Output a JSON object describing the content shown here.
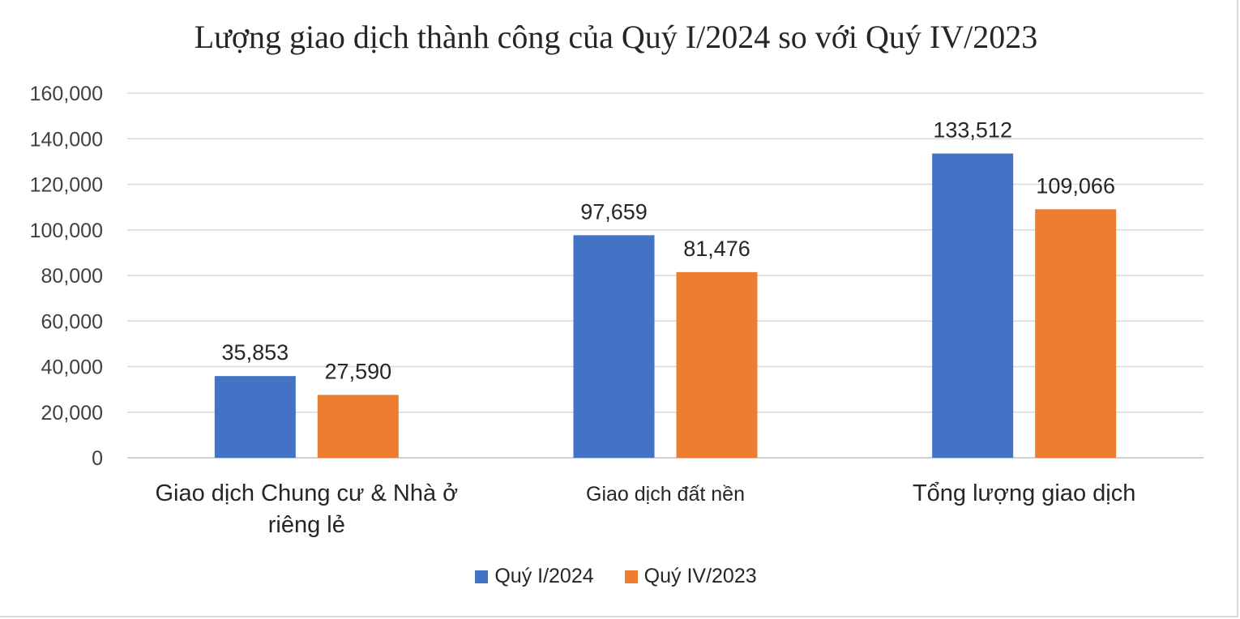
{
  "chart_data": {
    "type": "bar",
    "title": "Lượng giao dịch thành công của Quý I/2024 so với Quý IV/2023",
    "categories": [
      [
        "Giao dịch Chung cư & Nhà ở",
        "riêng lẻ"
      ],
      [
        "Giao dịch đất nền"
      ],
      [
        "Tổng lượng giao dịch"
      ]
    ],
    "series": [
      {
        "name": "Quý I/2024",
        "color": "#4472c4",
        "values": [
          35853,
          97659,
          133512
        ],
        "labels": [
          "35,853",
          "97,659",
          "133,512"
        ]
      },
      {
        "name": "Quý IV/2023",
        "color": "#ed7d31",
        "values": [
          27590,
          81476,
          109066
        ],
        "labels": [
          "27,590",
          "81,476",
          "109,066"
        ]
      }
    ],
    "ylim": [
      0,
      160000
    ],
    "yticks": [
      0,
      20000,
      40000,
      60000,
      80000,
      100000,
      120000,
      140000,
      160000
    ],
    "ytick_labels": [
      "0",
      "20,000",
      "40,000",
      "60,000",
      "80,000",
      "100,000",
      "120,000",
      "140,000",
      "160,000"
    ],
    "xlabel": "",
    "ylabel": "",
    "grid": true,
    "legend_position": "bottom"
  }
}
